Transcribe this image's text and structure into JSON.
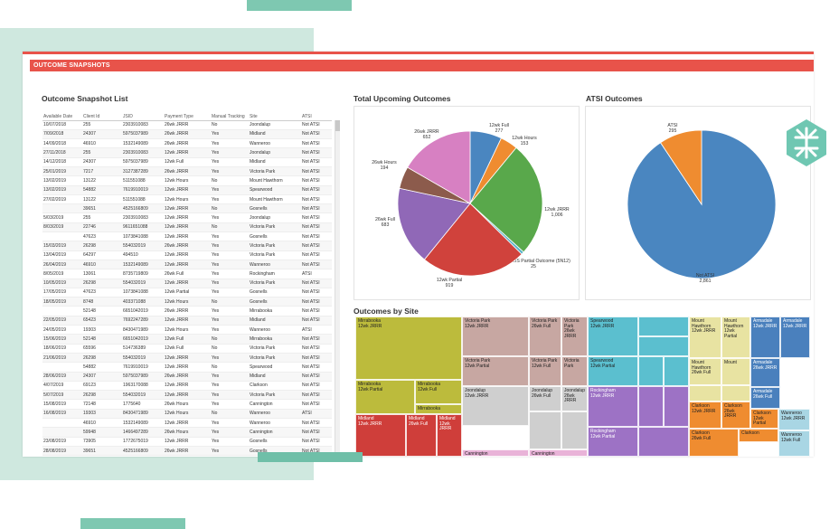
{
  "header": {
    "title": "OUTCOME SNAPSHOTS"
  },
  "snapshot_list": {
    "title": "Outcome Snapshot List",
    "columns": [
      "Available Date",
      "Client Id",
      "JSID",
      "Payment Type",
      "Manual Tracking",
      "Site",
      "ATSI"
    ],
    "rows": [
      [
        "10/07/2018",
        "255",
        "2303910083",
        "26wk JRRR",
        "No",
        "Joondalup",
        "Not ATSI"
      ],
      [
        "7/09/2018",
        "24307",
        "5975037989",
        "26wk JRRR",
        "Yes",
        "Midland",
        "Not ATSI"
      ],
      [
        "14/09/2018",
        "46910",
        "1532149089",
        "26wk JRRR",
        "Yes",
        "Wanneroo",
        "Not ATSI"
      ],
      [
        "27/11/2018",
        "255",
        "2303910083",
        "12wk JRRR",
        "Yes",
        "Joondalup",
        "Not ATSI"
      ],
      [
        "14/12/2018",
        "24307",
        "5975037989",
        "12wk Full",
        "Yes",
        "Midland",
        "Not ATSI"
      ],
      [
        "25/01/2019",
        "7217",
        "3127387289",
        "26wk JRRR",
        "Yes",
        "Victoria Park",
        "Not ATSI"
      ],
      [
        "13/02/2019",
        "13122",
        "511551088",
        "12wk Hours",
        "No",
        "Mount Hawthorn",
        "Not ATSI"
      ],
      [
        "13/02/2019",
        "54882",
        "7619910019",
        "12wk JRRR",
        "Yes",
        "Spearwood",
        "Not ATSI"
      ],
      [
        "27/02/2019",
        "13122",
        "511551088",
        "12wk Hours",
        "Yes",
        "Mount Hawthorn",
        "Not ATSI"
      ],
      [
        "",
        "39651",
        "4525166809",
        "12wk JRRR",
        "No",
        "Gosnells",
        "Not ATSI"
      ],
      [
        "5/03/2019",
        "255",
        "2303910083",
        "12wk JRRR",
        "Yes",
        "Joondalup",
        "Not ATSI"
      ],
      [
        "8/03/2019",
        "22746",
        "9611651088",
        "12wk JRRR",
        "No",
        "Victoria Park",
        "Not ATSI"
      ],
      [
        "",
        "47623",
        "1073841088",
        "12wk JRRR",
        "Yes",
        "Gosnells",
        "Not ATSI"
      ],
      [
        "15/03/2019",
        "26298",
        "554032019",
        "26wk JRRR",
        "Yes",
        "Victoria Park",
        "Not ATSI"
      ],
      [
        "13/04/2019",
        "64297",
        "494510",
        "12wk JRRR",
        "Yes",
        "Victoria Park",
        "Not ATSI"
      ],
      [
        "26/04/2019",
        "46910",
        "1532149089",
        "12wk JRRR",
        "Yes",
        "Wanneroo",
        "Not ATSI"
      ],
      [
        "8/05/2019",
        "13061",
        "8735719809",
        "26wk Full",
        "Yes",
        "Rockingham",
        "ATSI"
      ],
      [
        "10/05/2019",
        "26298",
        "554032019",
        "12wk JRRR",
        "Yes",
        "Victoria Park",
        "Not ATSI"
      ],
      [
        "17/05/2019",
        "47623",
        "1073841088",
        "12wk Partial",
        "Yes",
        "Gosnells",
        "Not ATSI"
      ],
      [
        "18/05/2019",
        "8748",
        "403371088",
        "12wk Hours",
        "No",
        "Gosnells",
        "Not ATSI"
      ],
      [
        "",
        "52148",
        "6651042019",
        "26wk JRRR",
        "Yes",
        "Mirrabooka",
        "Not ATSI"
      ],
      [
        "22/05/2019",
        "65423",
        "7692247289",
        "12wk JRRR",
        "Yes",
        "Midland",
        "Not ATSI"
      ],
      [
        "24/05/2019",
        "19303",
        "8430471989",
        "12wk Hours",
        "Yes",
        "Wanneroo",
        "ATSI"
      ],
      [
        "15/06/2019",
        "52148",
        "6651042019",
        "12wk Full",
        "No",
        "Mirrabooka",
        "Not ATSI"
      ],
      [
        "18/06/2019",
        "65596",
        "514736389",
        "12wk Full",
        "No",
        "Victoria Park",
        "Not ATSI"
      ],
      [
        "21/06/2019",
        "26298",
        "554032019",
        "12wk JRRR",
        "Yes",
        "Victoria Park",
        "Not ATSI"
      ],
      [
        "",
        "54882",
        "7619910019",
        "12wk JRRR",
        "No",
        "Spearwood",
        "Not ATSI"
      ],
      [
        "28/06/2019",
        "24307",
        "5975037989",
        "26wk JRRR",
        "Yes",
        "Midland",
        "Not ATSI"
      ],
      [
        "4/07/2019",
        "69123",
        "1963170088",
        "12wk JRRR",
        "Yes",
        "Clarkson",
        "Not ATSI"
      ],
      [
        "5/07/2019",
        "26298",
        "554032019",
        "12wk JRRR",
        "Yes",
        "Victoria Park",
        "Not ATSI"
      ],
      [
        "15/08/2019",
        "72148",
        "1775640",
        "26wk Hours",
        "Yes",
        "Cannington",
        "Not ATSI"
      ],
      [
        "16/08/2019",
        "19303",
        "8430471989",
        "12wk Hours",
        "No",
        "Wanneroo",
        "ATSI"
      ],
      [
        "",
        "46910",
        "1532149089",
        "12wk JRRR",
        "Yes",
        "Wanneroo",
        "Not ATSI"
      ],
      [
        "",
        "59948",
        "1466497289",
        "26wk Hours",
        "Yes",
        "Cannington",
        "Not ATSI"
      ],
      [
        "23/08/2019",
        "73905",
        "1772675019",
        "12wk JRRR",
        "Yes",
        "Gosnells",
        "Not ATSI"
      ],
      [
        "28/08/2019",
        "39651",
        "4525166809",
        "26wk JRRR",
        "Yes",
        "Gosnells",
        "Not ATSI"
      ]
    ]
  },
  "upcoming": {
    "title": "Total Upcoming Outcomes",
    "chart_data": {
      "type": "pie",
      "slices": [
        {
          "label": "12wk Full",
          "value": 277,
          "color": "#4a86c0"
        },
        {
          "label": "12wk Hours",
          "value": 153,
          "color": "#ef8c30"
        },
        {
          "label": "12wk JRRR",
          "value": 1006,
          "color": "#59a84b"
        },
        {
          "label": "12wk NEIS Partial Outcome (5N12)",
          "value": 25,
          "color": "#5ab4c8"
        },
        {
          "label": "12wk Partial",
          "value": 919,
          "color": "#d0423c"
        },
        {
          "label": "26wk Full",
          "value": 683,
          "color": "#9068b7"
        },
        {
          "label": "26wk Hours",
          "value": 194,
          "color": "#8c5b4c"
        },
        {
          "label": "26wk JRRR",
          "value": 652,
          "color": "#d780c2"
        }
      ],
      "value_labels": [
        "277",
        "153",
        "1,006",
        "25",
        "919",
        "683",
        "194",
        "652"
      ]
    }
  },
  "atsi": {
    "title": "ATSI Outcomes",
    "chart_data": {
      "type": "pie",
      "slices": [
        {
          "label": "Not ATSI",
          "value": 2861,
          "color": "#4a86c0"
        },
        {
          "label": "ATSI",
          "value": 295,
          "color": "#ef8c30"
        }
      ],
      "value_labels": [
        "2,861",
        "295"
      ]
    }
  },
  "treemap": {
    "title": "Outcomes by Site",
    "cells": [
      {
        "label": "Mirrabooka\n12wk JRRR",
        "color": "#bcbb3c"
      },
      {
        "label": "Mirrabooka\n12wk Partial",
        "color": "#bcbb3c"
      },
      {
        "label": "Mirrabooka\n12wk Full",
        "color": "#bcbb3c"
      },
      {
        "label": "Mirrabooka",
        "color": "#bcbb3c"
      },
      {
        "label": "Midland\n12wk JRRR",
        "color": "#cf3e3a"
      },
      {
        "label": "Midland\n26wk Full",
        "color": "#cf3e3a"
      },
      {
        "label": "Midland\n12wk JRRR",
        "color": "#cf3e3a"
      },
      {
        "label": "Victoria Park\n12wk JRRR",
        "color": "#c7a7a2"
      },
      {
        "label": "Victoria Park\n26wk Full",
        "color": "#c7a7a2"
      },
      {
        "label": "Victoria Park\n26wk JRRR",
        "color": "#c7a7a2"
      },
      {
        "label": "Victoria Park\n12wk Partial",
        "color": "#c7a7a2"
      },
      {
        "label": "Victoria Park\n12wk Full",
        "color": "#c7a7a2"
      },
      {
        "label": "Victoria Park",
        "color": "#c7a7a2"
      },
      {
        "label": "Joondalup\n12wk JRRR",
        "color": "#cfcfcf"
      },
      {
        "label": "Joondalup\n26wk Full",
        "color": "#cfcfcf"
      },
      {
        "label": "Joondalup\n26wk JRRR",
        "color": "#cfcfcf"
      },
      {
        "label": "Cannington",
        "color": "#e9b3d8"
      },
      {
        "label": "Cannington",
        "color": "#e9b3d8"
      },
      {
        "label": "Spearwood\n12wk JRRR",
        "color": "#5bbfcf"
      },
      {
        "label": "Spearwood\n12wk Partial",
        "color": "#5bbfcf"
      },
      {
        "label": "Rockingham\n12wk JRRR",
        "color": "#9d72c5"
      },
      {
        "label": "Rockingham\n12wk Partial",
        "color": "#9d72c5"
      },
      {
        "label": "Mount Hawthorn\n12wk JRRR",
        "color": "#e8e3a2"
      },
      {
        "label": "Mount Hawthorn\n12wk Partial",
        "color": "#e8e3a2"
      },
      {
        "label": "Mount Hawthorn\n26wk Full",
        "color": "#e8e3a2"
      },
      {
        "label": "Mount",
        "color": "#e8e3a2"
      },
      {
        "label": "Mount Hawthorn",
        "color": "#e8e3a2"
      },
      {
        "label": "Armadale\n12wk JRRR",
        "color": "#4a80bd"
      },
      {
        "label": "Armadale\n12wk JRRR",
        "color": "#4a80bd"
      },
      {
        "label": "Armadale\n26wk JRRR",
        "color": "#4a80bd"
      },
      {
        "label": "Armadale\n26wk Full",
        "color": "#4a80bd"
      },
      {
        "label": "Clarkson\n12wk JRRR",
        "color": "#ef8c30"
      },
      {
        "label": "Clarkson\n26wk JRRR",
        "color": "#ef8c30"
      },
      {
        "label": "Clarkson\n12wk Partial",
        "color": "#ef8c30"
      },
      {
        "label": "Clarkson\n26wk Full",
        "color": "#ef8c30"
      },
      {
        "label": "Clarkson",
        "color": "#ef8c30"
      },
      {
        "label": "Clarkson",
        "color": "#ef8c30"
      },
      {
        "label": "Wanneroo\n12wk JRRR",
        "color": "#a9d6e4"
      },
      {
        "label": "Wanneroo\n12wk Full",
        "color": "#a9d6e4"
      }
    ]
  },
  "colors": {
    "accent": "#e8534a",
    "deco_teal": "#cfe8df",
    "deco_green": "#6fbfa8"
  }
}
